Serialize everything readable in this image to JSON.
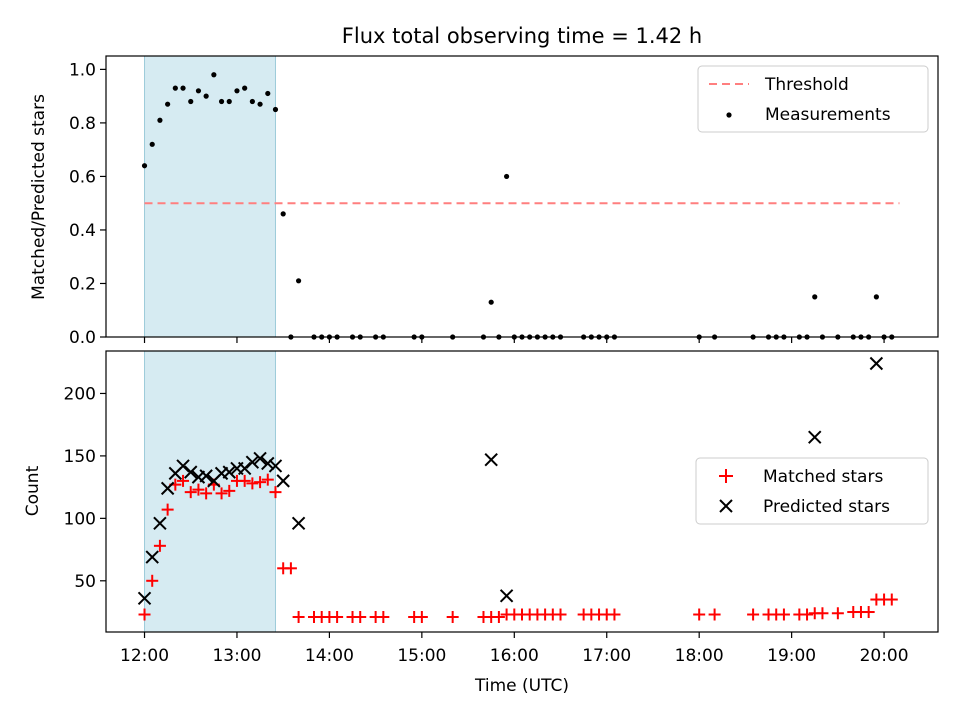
{
  "figure_title": "Flux total observing time = 1.42 h",
  "chart_data": [
    {
      "type": "scatter",
      "panel": "top",
      "title": "Flux total observing time = 1.42 h",
      "xlabel": "",
      "ylabel": "Matched/Predicted stars",
      "xlim": [
        "11:35",
        "20:35"
      ],
      "ylim": [
        0,
        1.05
      ],
      "yticks": [
        "0.0",
        "0.2",
        "0.4",
        "0.6",
        "0.8",
        "1.0"
      ],
      "shaded_interval": [
        "12:00",
        "13:25"
      ],
      "grid": false,
      "legend_position": "upper right",
      "threshold": {
        "name": "Threshold",
        "value": 0.5,
        "x": [
          "12:00",
          "20:10"
        ],
        "color": "#ff7f7f"
      },
      "series": [
        {
          "name": "Measurements",
          "color": "#000000",
          "points": [
            [
              "12:00",
              0.64
            ],
            [
              "12:05",
              0.72
            ],
            [
              "12:10",
              0.81
            ],
            [
              "12:15",
              0.87
            ],
            [
              "12:20",
              0.93
            ],
            [
              "12:25",
              0.93
            ],
            [
              "12:30",
              0.88
            ],
            [
              "12:35",
              0.92
            ],
            [
              "12:40",
              0.9
            ],
            [
              "12:45",
              0.98
            ],
            [
              "12:50",
              0.88
            ],
            [
              "12:55",
              0.88
            ],
            [
              "13:00",
              0.92
            ],
            [
              "13:05",
              0.93
            ],
            [
              "13:10",
              0.88
            ],
            [
              "13:15",
              0.87
            ],
            [
              "13:20",
              0.91
            ],
            [
              "13:25",
              0.85
            ],
            [
              "13:30",
              0.46
            ],
            [
              "13:35",
              0
            ],
            [
              "13:40",
              0.21
            ],
            [
              "13:50",
              0
            ],
            [
              "13:55",
              0
            ],
            [
              "14:00",
              0
            ],
            [
              "14:05",
              0
            ],
            [
              "14:15",
              0
            ],
            [
              "14:20",
              0
            ],
            [
              "14:30",
              0
            ],
            [
              "14:35",
              0
            ],
            [
              "14:55",
              0
            ],
            [
              "15:00",
              0
            ],
            [
              "15:20",
              0
            ],
            [
              "15:40",
              0
            ],
            [
              "15:45",
              0.13
            ],
            [
              "15:50",
              0
            ],
            [
              "15:55",
              0.6
            ],
            [
              "16:00",
              0
            ],
            [
              "16:05",
              0
            ],
            [
              "16:10",
              0
            ],
            [
              "16:15",
              0
            ],
            [
              "16:20",
              0
            ],
            [
              "16:25",
              0
            ],
            [
              "16:30",
              0
            ],
            [
              "16:45",
              0
            ],
            [
              "16:50",
              0
            ],
            [
              "16:55",
              0
            ],
            [
              "17:00",
              0
            ],
            [
              "17:05",
              0
            ],
            [
              "18:00",
              0
            ],
            [
              "18:10",
              0
            ],
            [
              "18:35",
              0
            ],
            [
              "18:45",
              0
            ],
            [
              "18:50",
              0
            ],
            [
              "18:55",
              0
            ],
            [
              "19:05",
              0
            ],
            [
              "19:10",
              0
            ],
            [
              "19:15",
              0.15
            ],
            [
              "19:20",
              0
            ],
            [
              "19:30",
              0
            ],
            [
              "19:40",
              0
            ],
            [
              "19:45",
              0
            ],
            [
              "19:50",
              0
            ],
            [
              "19:55",
              0.15
            ],
            [
              "20:00",
              0
            ],
            [
              "20:05",
              0
            ]
          ]
        }
      ]
    },
    {
      "type": "scatter",
      "panel": "bottom",
      "title": "",
      "xlabel": "Time (UTC)",
      "ylabel": "Count",
      "xlim": [
        "11:35",
        "20:35"
      ],
      "ylim": [
        9,
        234
      ],
      "xticks": [
        "12:00",
        "13:00",
        "14:00",
        "15:00",
        "16:00",
        "17:00",
        "18:00",
        "19:00",
        "20:00"
      ],
      "yticks": [
        "50",
        "100",
        "150",
        "200"
      ],
      "shaded_interval": [
        "12:00",
        "13:25"
      ],
      "grid": false,
      "legend_position": "center right",
      "series": [
        {
          "name": "Matched stars",
          "marker": "plus",
          "color": "#ff0000",
          "points": [
            [
              "12:00",
              23
            ],
            [
              "12:05",
              50
            ],
            [
              "12:10",
              78
            ],
            [
              "12:15",
              107
            ],
            [
              "12:20",
              127
            ],
            [
              "12:25",
              130
            ],
            [
              "12:30",
              121
            ],
            [
              "12:35",
              123
            ],
            [
              "12:40",
              120
            ],
            [
              "12:45",
              127
            ],
            [
              "12:50",
              120
            ],
            [
              "12:55",
              122
            ],
            [
              "13:00",
              130
            ],
            [
              "13:05",
              130
            ],
            [
              "13:10",
              128
            ],
            [
              "13:15",
              129
            ],
            [
              "13:20",
              131
            ],
            [
              "13:25",
              121
            ],
            [
              "13:30",
              60
            ],
            [
              "13:35",
              60
            ],
            [
              "13:40",
              21
            ],
            [
              "13:50",
              21
            ],
            [
              "13:55",
              21
            ],
            [
              "14:00",
              21
            ],
            [
              "14:05",
              21
            ],
            [
              "14:15",
              21
            ],
            [
              "14:20",
              21
            ],
            [
              "14:30",
              21
            ],
            [
              "14:35",
              21
            ],
            [
              "14:55",
              21
            ],
            [
              "15:00",
              21
            ],
            [
              "15:20",
              21
            ],
            [
              "15:40",
              21
            ],
            [
              "15:45",
              21
            ],
            [
              "15:50",
              21
            ],
            [
              "15:55",
              23
            ],
            [
              "16:00",
              23
            ],
            [
              "16:05",
              23
            ],
            [
              "16:10",
              23
            ],
            [
              "16:15",
              23
            ],
            [
              "16:20",
              23
            ],
            [
              "16:25",
              23
            ],
            [
              "16:30",
              23
            ],
            [
              "16:45",
              23
            ],
            [
              "16:50",
              23
            ],
            [
              "16:55",
              23
            ],
            [
              "17:00",
              23
            ],
            [
              "17:05",
              23
            ],
            [
              "18:00",
              23
            ],
            [
              "18:10",
              23
            ],
            [
              "18:35",
              23
            ],
            [
              "18:45",
              23
            ],
            [
              "18:50",
              23
            ],
            [
              "18:55",
              23
            ],
            [
              "19:05",
              23
            ],
            [
              "19:10",
              23
            ],
            [
              "19:15",
              24
            ],
            [
              "19:20",
              24
            ],
            [
              "19:30",
              24
            ],
            [
              "19:40",
              25
            ],
            [
              "19:45",
              25
            ],
            [
              "19:50",
              25
            ],
            [
              "19:55",
              35
            ],
            [
              "20:00",
              35
            ],
            [
              "20:05",
              35
            ]
          ]
        },
        {
          "name": "Predicted stars",
          "marker": "x",
          "color": "#000000",
          "points": [
            [
              "12:00",
              36
            ],
            [
              "12:05",
              69
            ],
            [
              "12:10",
              96
            ],
            [
              "12:15",
              124
            ],
            [
              "12:20",
              136
            ],
            [
              "12:25",
              142
            ],
            [
              "12:30",
              137
            ],
            [
              "12:35",
              133
            ],
            [
              "12:40",
              134
            ],
            [
              "12:45",
              130
            ],
            [
              "12:50",
              136
            ],
            [
              "12:55",
              137
            ],
            [
              "13:00",
              140
            ],
            [
              "13:05",
              140
            ],
            [
              "13:10",
              145
            ],
            [
              "13:15",
              148
            ],
            [
              "13:20",
              144
            ],
            [
              "13:25",
              142
            ],
            [
              "13:30",
              130
            ],
            [
              "13:40",
              96
            ],
            [
              "15:45",
              147
            ],
            [
              "15:55",
              38
            ],
            [
              "19:15",
              165
            ],
            [
              "19:55",
              224
            ]
          ]
        }
      ]
    }
  ]
}
